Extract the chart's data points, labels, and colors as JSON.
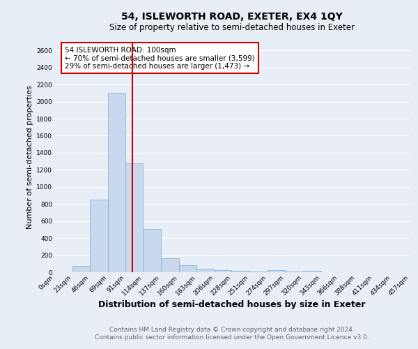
{
  "title": "54, ISLEWORTH ROAD, EXETER, EX4 1QY",
  "subtitle": "Size of property relative to semi-detached houses in Exeter",
  "xlabel": "Distribution of semi-detached houses by size in Exeter",
  "ylabel": "Number of semi-detached properties",
  "annotation_line1": "54 ISLEWORTH ROAD: 100sqm",
  "annotation_line2": "← 70% of semi-detached houses are smaller (3,599)",
  "annotation_line3": "29% of semi-detached houses are larger (1,473) →",
  "footer_line1": "Contains HM Land Registry data © Crown copyright and database right 2024.",
  "footer_line2": "Contains public sector information licensed under the Open Government Licence v3.0.",
  "bin_edges": [
    0,
    23,
    46,
    69,
    91,
    114,
    137,
    160,
    183,
    206,
    228,
    251,
    274,
    297,
    320,
    343,
    366,
    388,
    411,
    434,
    457
  ],
  "bin_labels": [
    "0sqm",
    "23sqm",
    "46sqm",
    "69sqm",
    "91sqm",
    "114sqm",
    "137sqm",
    "160sqm",
    "183sqm",
    "206sqm",
    "228sqm",
    "251sqm",
    "274sqm",
    "297sqm",
    "320sqm",
    "343sqm",
    "366sqm",
    "388sqm",
    "411sqm",
    "434sqm",
    "457sqm"
  ],
  "counts": [
    0,
    75,
    850,
    2100,
    1280,
    510,
    165,
    80,
    45,
    25,
    15,
    8,
    25,
    5,
    20,
    2,
    2,
    2,
    2,
    2
  ],
  "bar_color": "#c8d9ee",
  "bar_edge_color": "#7aabcf",
  "red_line_x": 100,
  "ylim": [
    0,
    2700
  ],
  "yticks": [
    0,
    200,
    400,
    600,
    800,
    1000,
    1200,
    1400,
    1600,
    1800,
    2000,
    2200,
    2400,
    2600
  ],
  "bg_color": "#e8eef5",
  "plot_bg_color": "#e8eef5",
  "grid_color": "#ffffff",
  "annotation_box_color": "#ffffff",
  "annotation_box_edge": "#cc0000",
  "red_line_color": "#cc0000",
  "title_fontsize": 10,
  "subtitle_fontsize": 8.5,
  "axis_label_fontsize": 8,
  "tick_fontsize": 6.5,
  "annotation_fontsize": 7.5,
  "footer_fontsize": 6.5
}
